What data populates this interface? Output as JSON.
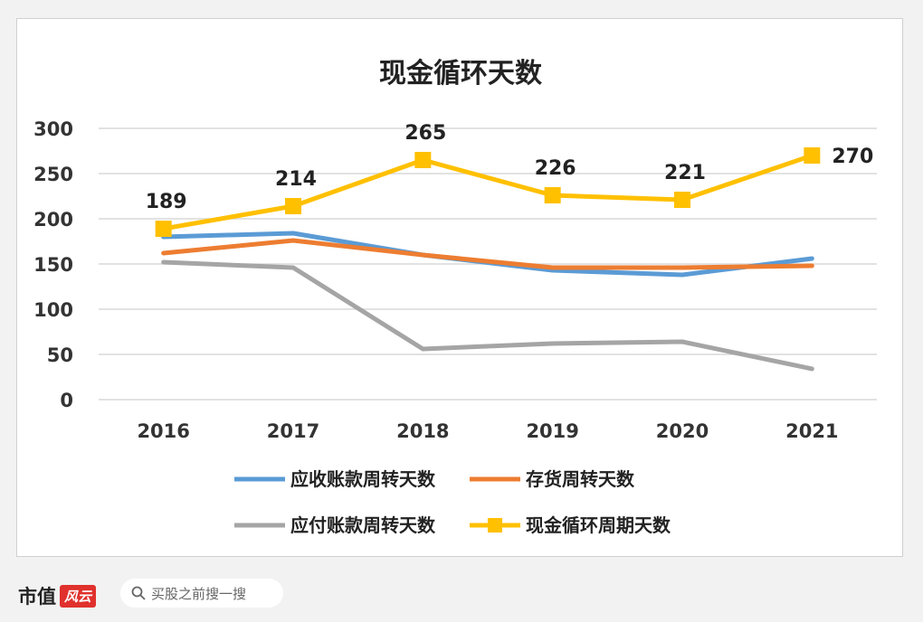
{
  "chart_data": {
    "type": "line",
    "title": "现金循环天数",
    "categories": [
      "2016",
      "2017",
      "2018",
      "2019",
      "2020",
      "2021"
    ],
    "ylim": [
      0,
      300
    ],
    "yticks": [
      0,
      50,
      100,
      150,
      200,
      250,
      300
    ],
    "grid": true,
    "legend_position": "bottom",
    "series": [
      {
        "name": "应收账款周转天数",
        "color": "#5b9bd5",
        "values": [
          180,
          184,
          160,
          143,
          138,
          156
        ],
        "marker": "none",
        "labels": false
      },
      {
        "name": "存货周转天数",
        "color": "#ed7d31",
        "values": [
          162,
          176,
          160,
          146,
          146,
          148
        ],
        "marker": "none",
        "labels": false
      },
      {
        "name": "应付账款周转天数",
        "color": "#a5a5a5",
        "values": [
          152,
          146,
          56,
          62,
          64,
          34
        ],
        "marker": "none",
        "labels": false
      },
      {
        "name": "现金循环周期天数",
        "color": "#ffc000",
        "values": [
          189,
          214,
          265,
          226,
          221,
          270
        ],
        "marker": "square",
        "labels": true
      }
    ]
  },
  "footer": {
    "brand": "市值",
    "brand_logo": "风云",
    "search_placeholder": "买股之前搜一搜"
  }
}
